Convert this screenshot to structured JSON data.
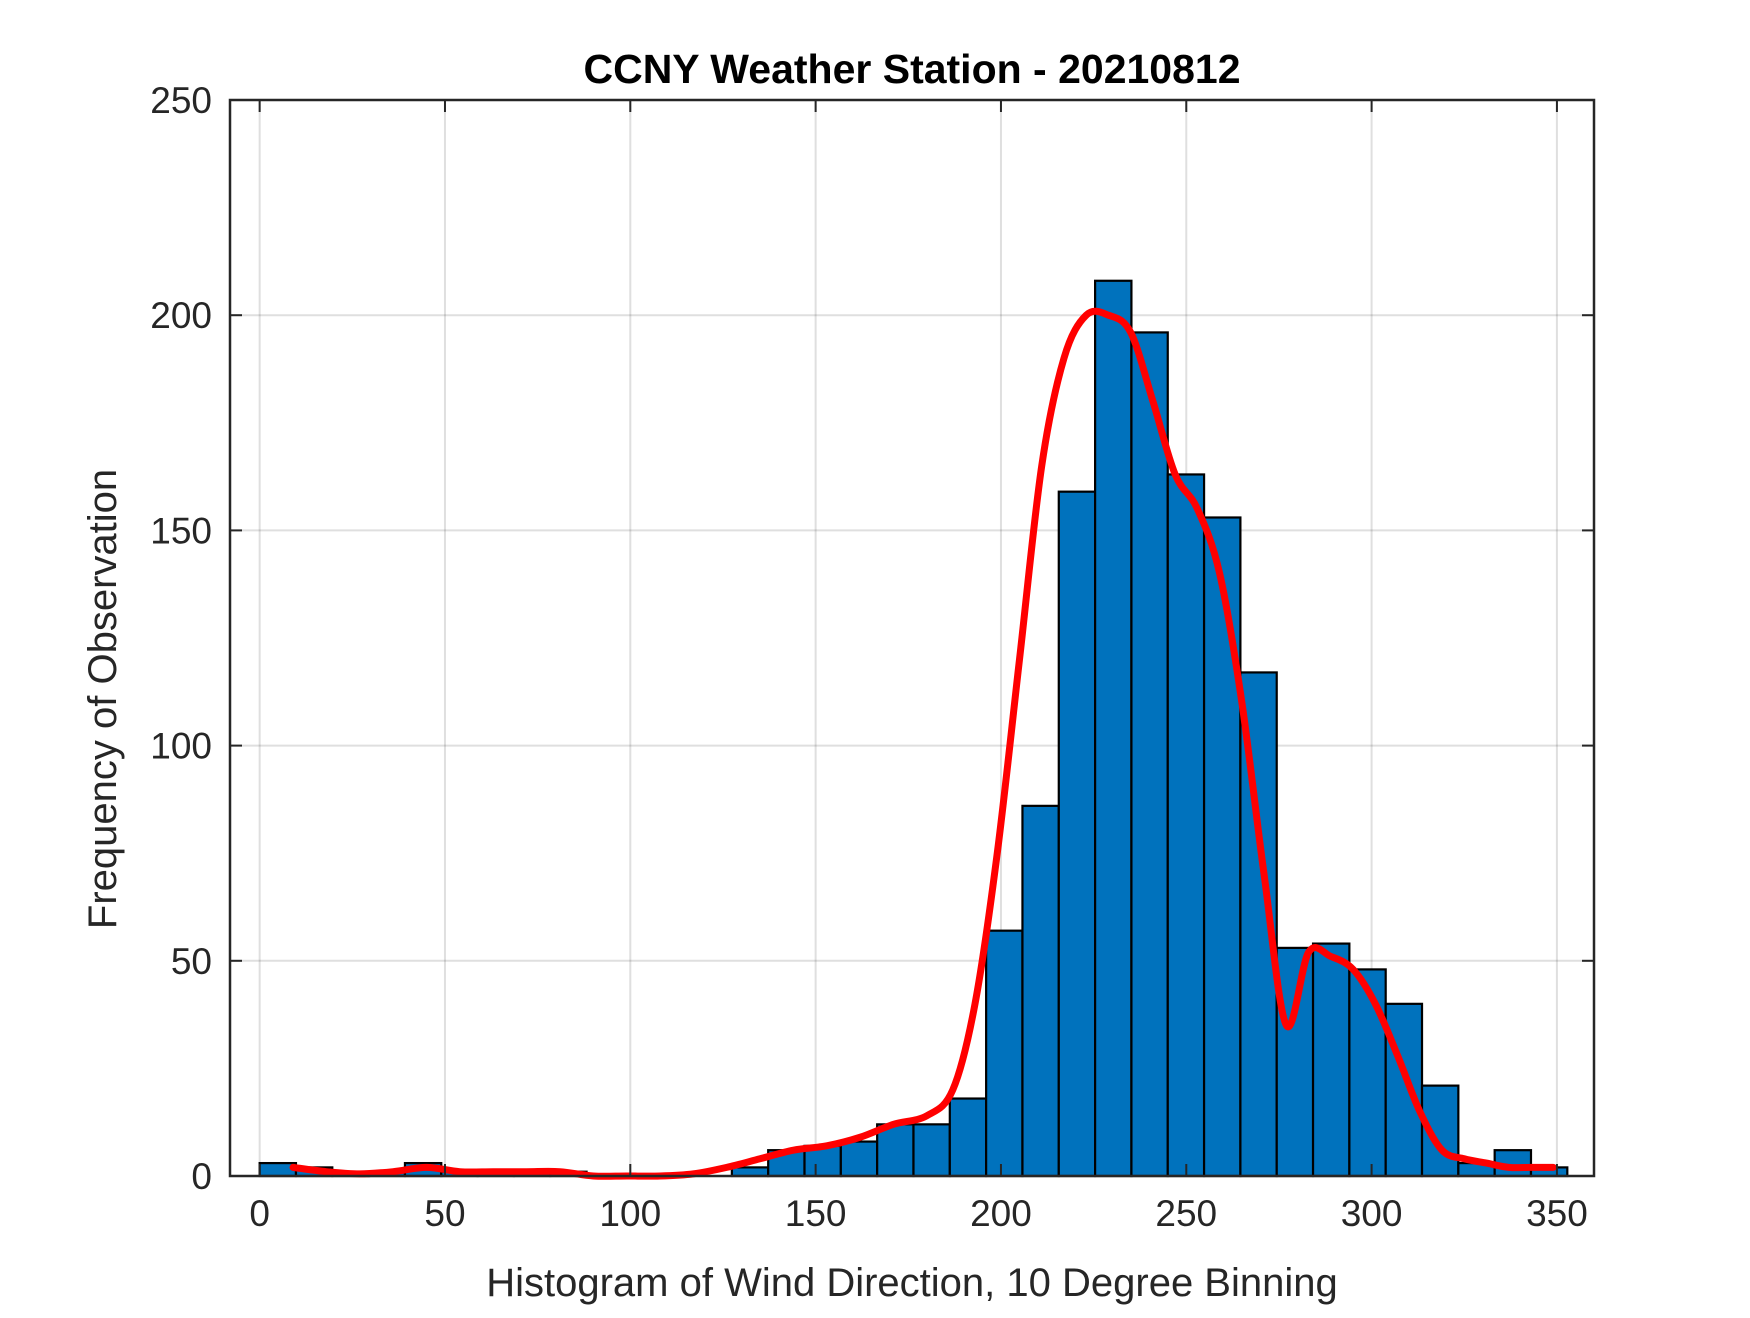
{
  "chart_data": {
    "type": "bar",
    "title": "CCNY Weather Station - 20210812",
    "xlabel": "Histogram of Wind Direction, 10 Degree Binning",
    "ylabel": "Frequency of Observation",
    "xlim": [
      -8,
      360
    ],
    "ylim": [
      0,
      250
    ],
    "xticks": [
      "0",
      "50",
      "100",
      "150",
      "200",
      "250",
      "300",
      "350"
    ],
    "yticks": [
      "0",
      "50",
      "100",
      "150",
      "200",
      "250"
    ],
    "grid": true,
    "bar_color": "#0072BD",
    "line_color": "#FF0000",
    "bin_width": 9.8,
    "bins": [
      0,
      9.8,
      19.6,
      29.4,
      39.2,
      49,
      58.8,
      68.6,
      78.4,
      88.2,
      98,
      107.8,
      117.6,
      127.4,
      137.2,
      147,
      156.8,
      166.6,
      176.4,
      186.2,
      196,
      205.8,
      215.6,
      225.4,
      235.2,
      245,
      254.8,
      264.6,
      274.4,
      284.2,
      294,
      303.8,
      313.6,
      323.4,
      333.2,
      343
    ],
    "values": [
      3,
      2,
      1,
      1,
      3,
      1,
      1,
      1,
      1,
      0,
      0,
      0,
      0,
      2,
      6,
      7,
      8,
      12,
      12,
      18,
      57,
      86,
      159,
      208,
      196,
      163,
      153,
      117,
      53,
      54,
      48,
      40,
      21,
      3,
      6,
      2
    ],
    "series": [
      {
        "type": "line",
        "x": [
          9,
          18,
          27,
          36,
          45,
          54,
          63,
          72,
          81,
          90,
          99,
          108,
          117,
          126,
          135,
          144,
          153,
          162,
          171,
          180,
          187,
          193,
          199,
          205,
          211,
          217,
          223,
          229,
          235,
          241,
          247,
          253,
          259,
          265,
          271,
          277,
          283,
          289,
          295,
          301,
          307,
          313,
          319,
          325,
          331,
          337,
          343,
          349
        ],
        "y": [
          2,
          1,
          0.5,
          1,
          2,
          1,
          1,
          1,
          1,
          0,
          0,
          0,
          0.5,
          2,
          4,
          6,
          7,
          9,
          12,
          14,
          20,
          40,
          75,
          120,
          165,
          190,
          200,
          200,
          196,
          180,
          163,
          155,
          140,
          110,
          70,
          35,
          52,
          51,
          48,
          40,
          28,
          15,
          6,
          4,
          3,
          2,
          2,
          2
        ]
      }
    ]
  }
}
